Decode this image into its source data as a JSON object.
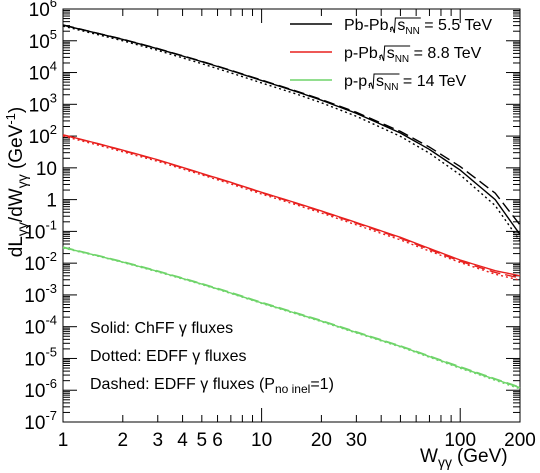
{
  "chart_data": {
    "type": "line",
    "x_scale": "log",
    "y_scale": "log",
    "xlim": [
      1,
      200
    ],
    "ylim": [
      1e-07,
      1000000.0
    ],
    "xlabel": "W",
    "xlabel_sub": "γγ",
    "xlabel_unit": "(GeV)",
    "ylabel": "dL",
    "ylabel_sub": "γγ",
    "ylabel_mid": "/dW",
    "ylabel_sub2": "γγ",
    "ylabel_unit": " (GeV",
    "ylabel_unit_sup": "-1",
    "ylabel_close": ")",
    "grid": false,
    "legend_position": "top-right",
    "x_ticks": [
      {
        "v": 1,
        "label": "1"
      },
      {
        "v": 2,
        "label": "2"
      },
      {
        "v": 3,
        "label": "3"
      },
      {
        "v": 4,
        "label": "4"
      },
      {
        "v": 5,
        "label": "5"
      },
      {
        "v": 6,
        "label": "6"
      },
      {
        "v": 10,
        "label": "10"
      },
      {
        "v": 20,
        "label": "20"
      },
      {
        "v": 30,
        "label": "30"
      },
      {
        "v": 100,
        "label": "100"
      },
      {
        "v": 200,
        "label": "200"
      }
    ],
    "y_tick_labels": [
      {
        "v": 1e-07,
        "base": "10",
        "exp": "-7"
      },
      {
        "v": 1e-06,
        "base": "10",
        "exp": "-6"
      },
      {
        "v": 1e-05,
        "base": "10",
        "exp": "-5"
      },
      {
        "v": 0.0001,
        "base": "10",
        "exp": "-4"
      },
      {
        "v": 0.001,
        "base": "10",
        "exp": "-3"
      },
      {
        "v": 0.01,
        "base": "10",
        "exp": "-2"
      },
      {
        "v": 0.1,
        "base": "10",
        "exp": "-1"
      },
      {
        "v": 1,
        "base": "1",
        "exp": ""
      },
      {
        "v": 10,
        "base": "10",
        "exp": ""
      },
      {
        "v": 100,
        "base": "10",
        "exp": "2"
      },
      {
        "v": 1000,
        "base": "10",
        "exp": "3"
      },
      {
        "v": 10000,
        "base": "10",
        "exp": "4"
      },
      {
        "v": 100000,
        "base": "10",
        "exp": "5"
      },
      {
        "v": 1000000,
        "base": "10",
        "exp": "6"
      }
    ],
    "legend": [
      {
        "label": "Pb-Pb, ",
        "sqrt_sub": "NN",
        "value": " = 5.5 TeV",
        "color": "#000000"
      },
      {
        "label": "p-Pb, ",
        "sqrt_sub": "NN",
        "value": " = 8.8 TeV",
        "color": "#e8201e"
      },
      {
        "label": "p-p, ",
        "sqrt_sub": "NN",
        "value": " = 14 TeV",
        "color": "#6fd46a"
      }
    ],
    "sqrt_symbol_letter": "s",
    "annotations": [
      {
        "text": "Solid: ChFF γ fluxes"
      },
      {
        "text": "Dotted: EDFF γ fluxes"
      },
      {
        "text": "Dashed: EDFF γ fluxes (P",
        "sub": "no inel",
        "tail": "=1)"
      }
    ],
    "line_styles": {
      "solid": "ChFF",
      "dotted": "EDFF",
      "dashed": "EDFF (P_no inel = 1)"
    },
    "series": [
      {
        "name": "Pb-Pb, ChFF",
        "system": "Pb-Pb",
        "style": "solid",
        "color": "#000000",
        "x": [
          1,
          1.5,
          2,
          3,
          5,
          7,
          10,
          15,
          20,
          30,
          50,
          70,
          100,
          150,
          200
        ],
        "y": [
          310000.0,
          170000.0,
          110000.0,
          56000.0,
          22000.0,
          11500.0,
          5600.0,
          2500.0,
          1350.0,
          520,
          125,
          38,
          8.5,
          1.0,
          0.08
        ]
      },
      {
        "name": "Pb-Pb, EDFF",
        "system": "Pb-Pb",
        "style": "dotted",
        "color": "#000000",
        "x": [
          1,
          1.5,
          2,
          3,
          5,
          7,
          10,
          15,
          20,
          30,
          50,
          70,
          100,
          150,
          200
        ],
        "y": [
          290000.0,
          155000.0,
          100000.0,
          50000.0,
          19000.0,
          9800.0,
          4700.0,
          2100.0,
          1120.0,
          420,
          98,
          29,
          6.0,
          0.65,
          0.05
        ]
      },
      {
        "name": "Pb-Pb, EDFF (P_no inel=1)",
        "system": "Pb-Pb",
        "style": "dashed",
        "color": "#000000",
        "x": [
          1,
          1.5,
          2,
          3,
          5,
          7,
          10,
          15,
          20,
          30,
          50,
          70,
          100,
          150,
          200
        ],
        "y": [
          315000.0,
          172000.0,
          112000.0,
          57000.0,
          22500.0,
          11800.0,
          5800.0,
          2600.0,
          1420.0,
          560,
          140,
          45,
          11,
          1.6,
          0.16
        ]
      },
      {
        "name": "p-Pb, ChFF",
        "system": "p-Pb",
        "style": "solid",
        "color": "#e8201e",
        "x": [
          1,
          1.5,
          2,
          3,
          5,
          7,
          10,
          15,
          20,
          30,
          50,
          70,
          100,
          150,
          200
        ],
        "y": [
          110,
          58,
          36,
          18,
          6.7,
          3.5,
          1.7,
          0.78,
          0.44,
          0.19,
          0.065,
          0.029,
          0.0125,
          0.0058,
          0.004
        ]
      },
      {
        "name": "p-Pb, EDFF",
        "system": "p-Pb",
        "style": "dotted",
        "color": "#e8201e",
        "x": [
          1,
          1.5,
          2,
          3,
          5,
          7,
          10,
          15,
          20,
          30,
          50,
          70,
          100,
          150,
          200
        ],
        "y": [
          100,
          52,
          32,
          16,
          6.0,
          3.1,
          1.5,
          0.68,
          0.38,
          0.16,
          0.054,
          0.024,
          0.0105,
          0.0045,
          0.0029
        ]
      },
      {
        "name": "p-Pb, EDFF (P_no inel=1)",
        "system": "p-Pb",
        "style": "dashed",
        "color": "#e8201e",
        "x": [
          1,
          1.5,
          2,
          3,
          5,
          7,
          10,
          15,
          20,
          30,
          50,
          70,
          100,
          150,
          200
        ],
        "y": [
          108,
          57,
          35,
          17.5,
          6.5,
          3.4,
          1.65,
          0.75,
          0.42,
          0.18,
          0.061,
          0.027,
          0.0115,
          0.0051,
          0.0034
        ]
      },
      {
        "name": "p-p, ChFF",
        "system": "p-p",
        "style": "solid",
        "color": "#6fd46a",
        "x": [
          1,
          1.5,
          2,
          3,
          5,
          7,
          10,
          15,
          20,
          30,
          50,
          70,
          100,
          150,
          200
        ],
        "y": [
          0.031,
          0.017,
          0.0108,
          0.0055,
          0.0022,
          0.00115,
          0.00056,
          0.00026,
          0.00015,
          6.6e-05,
          2.4e-05,
          1.15e-05,
          5.2e-06,
          2.2e-06,
          1.2e-06
        ]
      },
      {
        "name": "p-p, EDFF",
        "system": "p-p",
        "style": "dotted",
        "color": "#6fd46a",
        "x": [
          1,
          1.5,
          2,
          3,
          5,
          7,
          10,
          15,
          20,
          30,
          50,
          70,
          100,
          150,
          200
        ],
        "y": [
          0.03,
          0.0165,
          0.0105,
          0.0053,
          0.00212,
          0.00111,
          0.00054,
          0.00025,
          0.000144,
          6.3e-05,
          2.3e-05,
          1.09e-05,
          4.9e-06,
          2.05e-06,
          1.1e-06
        ]
      },
      {
        "name": "p-p, EDFF (P_no inel=1)",
        "system": "p-p",
        "style": "dashed",
        "color": "#6fd46a",
        "x": [
          1,
          1.5,
          2,
          3,
          5,
          7,
          10,
          15,
          20,
          30,
          50,
          70,
          100,
          150,
          200
        ],
        "y": [
          0.032,
          0.0175,
          0.0112,
          0.0057,
          0.00228,
          0.0012,
          0.000585,
          0.000272,
          0.000157,
          6.9e-05,
          2.5e-05,
          1.2e-05,
          5.5e-06,
          2.3e-06,
          1.25e-06
        ]
      }
    ]
  }
}
